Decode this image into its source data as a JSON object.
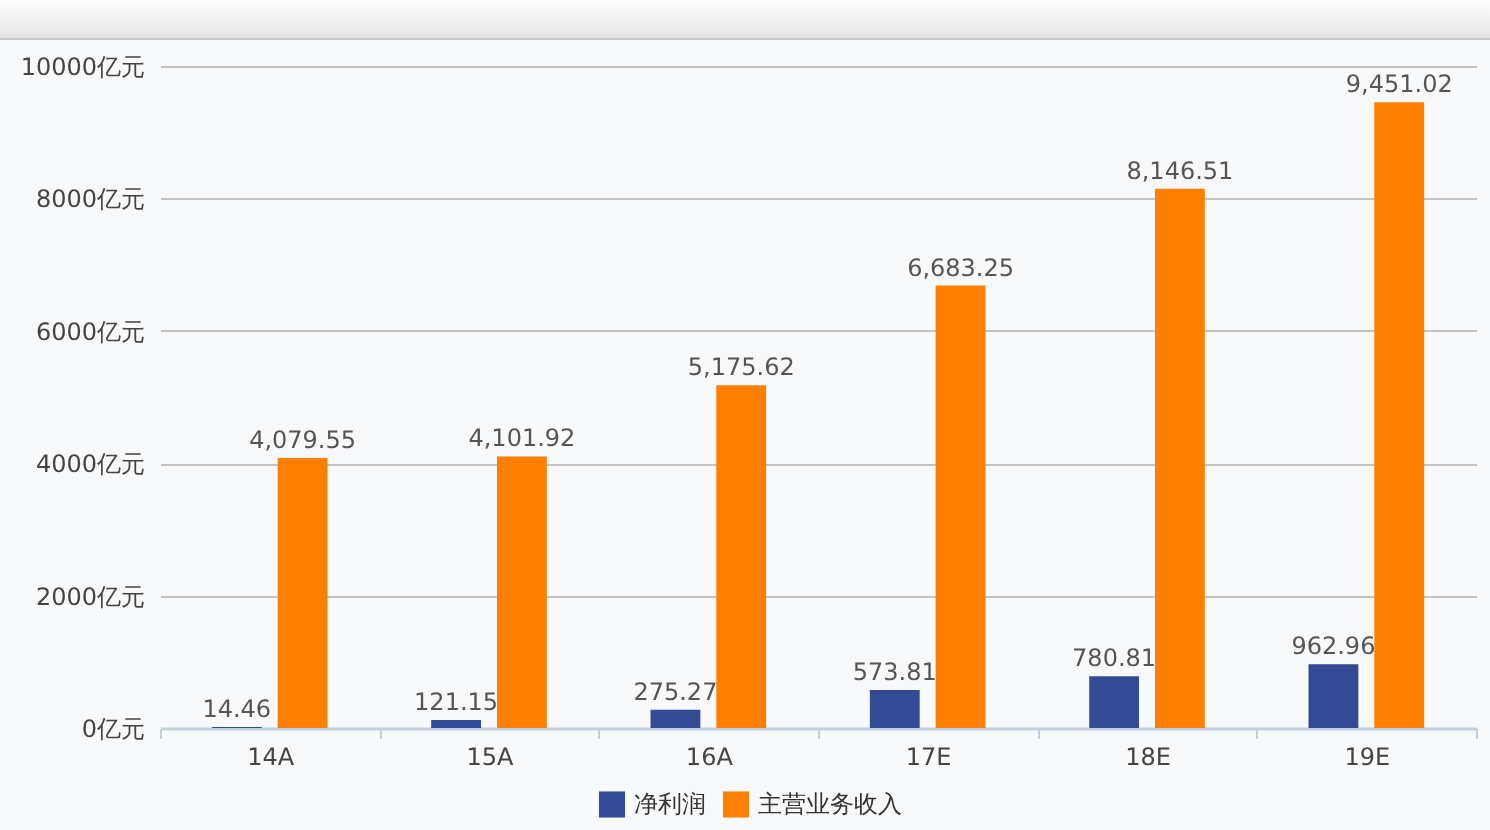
{
  "chart_data": {
    "type": "bar",
    "categories": [
      "14A",
      "15A",
      "16A",
      "17E",
      "18E",
      "19E"
    ],
    "series": [
      {
        "name": "净利润",
        "color": "#334a94",
        "values": [
          14.46,
          121.15,
          275.27,
          573.81,
          780.81,
          962.96
        ],
        "value_labels": [
          "14.46",
          "121.15",
          "275.27",
          "573.81",
          "780.81",
          "962.96"
        ]
      },
      {
        "name": "主营业务收入",
        "color": "#ff7f00",
        "values": [
          4079.55,
          4101.92,
          5175.62,
          6683.25,
          8146.51,
          9451.02
        ],
        "value_labels": [
          "4,079.55",
          "4,101.92",
          "5,175.62",
          "6,683.25",
          "8,146.51",
          "9,451.02"
        ]
      }
    ],
    "ylim": [
      0,
      10000
    ],
    "yticks": [
      {
        "value": 0,
        "label": "0亿元"
      },
      {
        "value": 2000,
        "label": "2000亿元"
      },
      {
        "value": 4000,
        "label": "4000亿元"
      },
      {
        "value": 6000,
        "label": "6000亿元"
      },
      {
        "value": 8000,
        "label": "8000亿元"
      },
      {
        "value": 10000,
        "label": "10000亿元"
      }
    ],
    "grid": "y",
    "legend": "bottom"
  }
}
